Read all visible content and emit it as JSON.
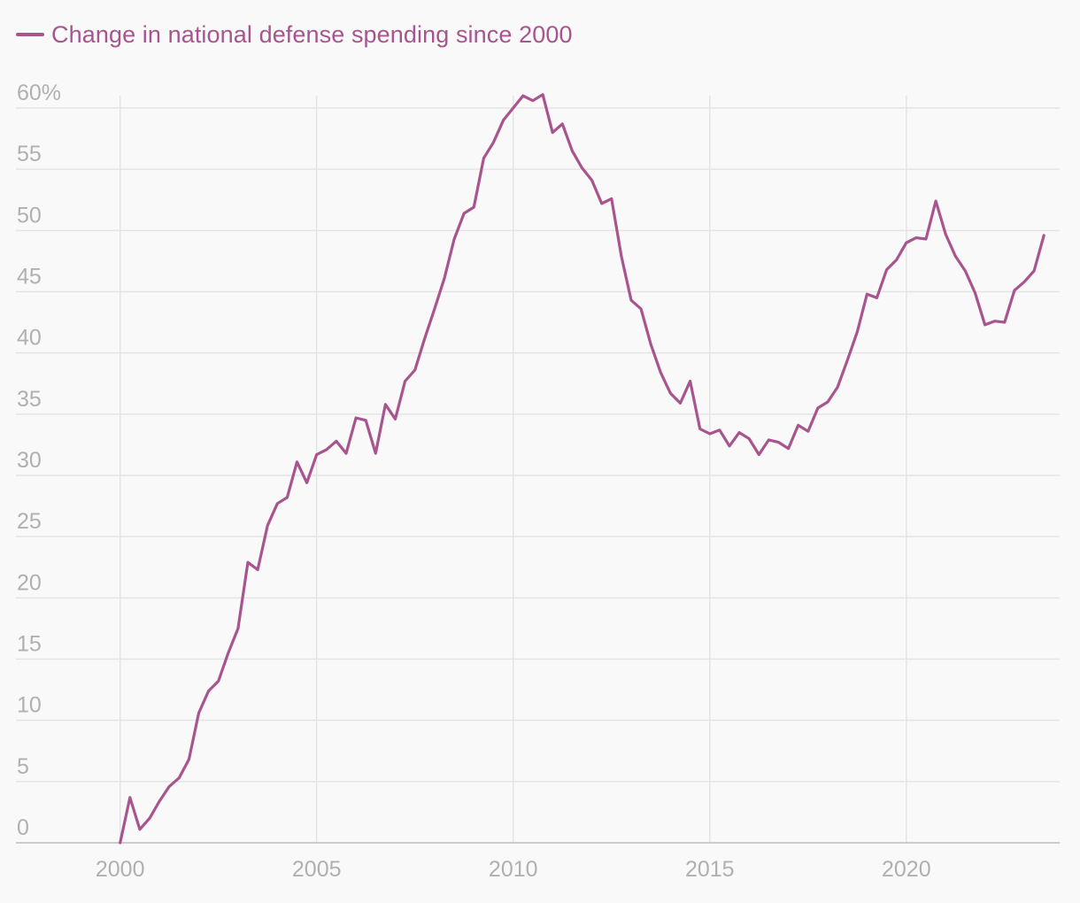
{
  "legend": {
    "label": "Change in national defense spending since 2000"
  },
  "colors": {
    "series": "#a8558f",
    "grid": "#e4e4e4",
    "axis": "#bdbdbd",
    "tick_text": "#b0b0b0",
    "background": "#f9f9f9"
  },
  "chart_data": {
    "type": "line",
    "title": "",
    "xlabel": "",
    "ylabel": "",
    "xlim": [
      1997.35,
      2023.9
    ],
    "ylim": [
      0,
      60
    ],
    "grid": true,
    "legend_position": "top-left",
    "x_ticks": [
      2000,
      2005,
      2010,
      2015,
      2020
    ],
    "x_tick_labels": [
      "2000",
      "2005",
      "2010",
      "2015",
      "2020"
    ],
    "y_ticks": [
      0,
      5,
      10,
      15,
      20,
      25,
      30,
      35,
      40,
      45,
      50,
      55,
      60
    ],
    "y_tick_labels": [
      "0",
      "5",
      "10",
      "15",
      "20",
      "25",
      "30",
      "35",
      "40",
      "45",
      "50",
      "55",
      "60%"
    ],
    "series": [
      {
        "name": "Change in national defense spending since 2000",
        "x": [
          2000.0,
          2000.25,
          2000.5,
          2000.75,
          2001.0,
          2001.25,
          2001.5,
          2001.75,
          2002.0,
          2002.25,
          2002.5,
          2002.75,
          2003.0,
          2003.25,
          2003.5,
          2003.75,
          2004.0,
          2004.25,
          2004.5,
          2004.75,
          2005.0,
          2005.25,
          2005.5,
          2005.75,
          2006.0,
          2006.25,
          2006.5,
          2006.75,
          2007.0,
          2007.25,
          2007.5,
          2007.75,
          2008.0,
          2008.25,
          2008.5,
          2008.75,
          2009.0,
          2009.25,
          2009.5,
          2009.75,
          2010.0,
          2010.25,
          2010.5,
          2010.75,
          2011.0,
          2011.25,
          2011.5,
          2011.75,
          2012.0,
          2012.25,
          2012.5,
          2012.75,
          2013.0,
          2013.25,
          2013.5,
          2013.75,
          2014.0,
          2014.25,
          2014.5,
          2014.75,
          2015.0,
          2015.25,
          2015.5,
          2015.75,
          2016.0,
          2016.25,
          2016.5,
          2016.75,
          2017.0,
          2017.25,
          2017.5,
          2017.75,
          2018.0,
          2018.25,
          2018.5,
          2018.75,
          2019.0,
          2019.25,
          2019.5,
          2019.75,
          2020.0,
          2020.25,
          2020.5,
          2020.75,
          2021.0,
          2021.25,
          2021.5,
          2021.75,
          2022.0,
          2022.25,
          2022.5,
          2022.75,
          2023.0,
          2023.25,
          2023.5
        ],
        "values": [
          0.0,
          3.7,
          1.1,
          2.0,
          3.4,
          4.6,
          5.3,
          6.8,
          10.6,
          12.4,
          13.2,
          15.5,
          17.5,
          22.9,
          22.3,
          25.9,
          27.7,
          28.2,
          31.1,
          29.4,
          31.7,
          32.1,
          32.8,
          31.8,
          34.7,
          34.5,
          31.8,
          35.8,
          34.6,
          37.7,
          38.6,
          41.2,
          43.6,
          46.1,
          49.3,
          51.4,
          51.9,
          55.9,
          57.2,
          59.0,
          60.0,
          61.0,
          60.6,
          61.1,
          58.0,
          58.7,
          56.5,
          55.1,
          54.1,
          52.2,
          52.6,
          47.9,
          44.3,
          43.6,
          40.7,
          38.4,
          36.7,
          35.9,
          37.7,
          33.8,
          33.4,
          33.7,
          32.4,
          33.5,
          33.0,
          31.7,
          32.9,
          32.7,
          32.2,
          34.1,
          33.6,
          35.5,
          36.0,
          37.2,
          39.4,
          41.7,
          44.8,
          44.5,
          46.8,
          47.6,
          49.0,
          49.4,
          49.3,
          52.4,
          49.7,
          47.9,
          46.7,
          44.9,
          42.3,
          42.6,
          42.5,
          45.1,
          45.8,
          46.7,
          49.6
        ]
      }
    ]
  }
}
